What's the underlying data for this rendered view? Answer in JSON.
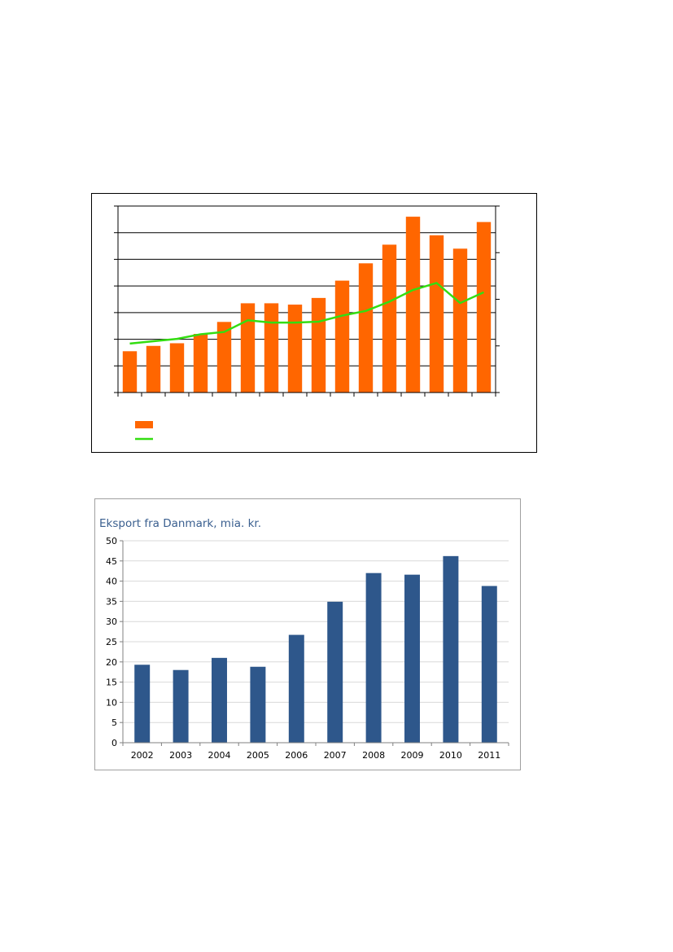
{
  "chart_data": [
    {
      "type": "bar",
      "title": "",
      "xlabel": "",
      "ylabel": "",
      "categories": [
        "",
        "",
        "",
        "",
        "",
        "",
        "",
        "",
        "",
        "",
        "",
        "",
        "",
        "",
        "",
        ""
      ],
      "ylim": [
        0,
        7
      ],
      "y2lim": [
        0,
        4
      ],
      "series": [
        {
          "name": "",
          "kind": "bar",
          "axis": "left",
          "color": "#ff6600",
          "values": [
            1.55,
            1.75,
            1.85,
            2.2,
            2.65,
            3.35,
            3.35,
            3.3,
            3.55,
            4.2,
            4.85,
            5.55,
            6.6,
            5.9,
            5.4,
            6.4
          ]
        },
        {
          "name": "",
          "kind": "line",
          "axis": "right",
          "color": "#33dd11",
          "values": [
            1.05,
            1.1,
            1.15,
            1.25,
            1.3,
            1.55,
            1.5,
            1.5,
            1.52,
            1.65,
            1.75,
            1.95,
            2.2,
            2.35,
            1.92,
            2.15
          ]
        }
      ]
    },
    {
      "type": "bar",
      "title": "Eksport fra Danmark, mia. kr.",
      "xlabel": "",
      "ylabel": "",
      "categories": [
        "2002",
        "2003",
        "2004",
        "2005",
        "2006",
        "2007",
        "2008",
        "2009",
        "2010",
        "2011"
      ],
      "values": [
        19.3,
        18.0,
        21.0,
        18.8,
        26.7,
        34.9,
        42.0,
        41.6,
        46.2,
        38.8
      ],
      "ylim": [
        0,
        50
      ],
      "yticks": [
        "0",
        "5",
        "10",
        "15",
        "20",
        "25",
        "30",
        "35",
        "40",
        "45",
        "50"
      ],
      "color": "#2e578b"
    }
  ]
}
